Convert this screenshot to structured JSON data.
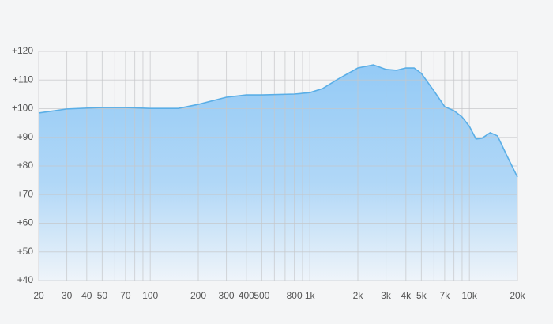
{
  "chart_data": {
    "type": "area",
    "x": [
      20,
      30,
      50,
      70,
      100,
      150,
      200,
      300,
      400,
      500,
      800,
      1000,
      1200,
      1500,
      2000,
      2500,
      3000,
      3500,
      4000,
      4500,
      5000,
      6000,
      7000,
      8000,
      9000,
      10000,
      11000,
      12000,
      13500,
      15000,
      17000,
      20000
    ],
    "series": [
      {
        "color": "#5aaee6",
        "values": [
          98.5,
          99.9,
          100.4,
          100.4,
          100.1,
          100.1,
          101.5,
          104,
          104.8,
          104.8,
          105.1,
          105.6,
          107,
          110.3,
          114.2,
          115.3,
          113.7,
          113.4,
          114.2,
          114.2,
          112.3,
          106.2,
          100.7,
          99.3,
          97.1,
          93.8,
          89.4,
          89.7,
          91.6,
          90.5,
          84.1,
          76.1
        ]
      }
    ],
    "xlim": [
      20,
      20000
    ],
    "xscale": "log",
    "xticks": [
      20,
      30,
      40,
      50,
      70,
      100,
      200,
      300,
      400,
      500,
      800,
      {
        "value": 1000,
        "label": "1k"
      },
      {
        "value": 2000,
        "label": "2k"
      },
      {
        "value": 3000,
        "label": "3k"
      },
      {
        "value": 4000,
        "label": "4k"
      },
      {
        "value": 5000,
        "label": "5k"
      },
      {
        "value": 7000,
        "label": "7k"
      },
      {
        "value": 10000,
        "label": "10k"
      },
      {
        "value": 20000,
        "label": "20k"
      }
    ],
    "xminor": [
      60,
      80,
      90,
      600,
      700,
      900,
      6000,
      8000,
      9000
    ],
    "ylim": [
      40,
      120
    ],
    "yticks": [
      {
        "value": 40,
        "label": "+40"
      },
      {
        "value": 50,
        "label": "+50"
      },
      {
        "value": 60,
        "label": "+60"
      },
      {
        "value": 70,
        "label": "+70"
      },
      {
        "value": 80,
        "label": "+80"
      },
      {
        "value": 90,
        "label": "+90"
      },
      {
        "value": 100,
        "label": "+100"
      },
      {
        "value": 110,
        "label": "+110"
      },
      {
        "value": 120,
        "label": "+120"
      }
    ],
    "grid": true
  }
}
